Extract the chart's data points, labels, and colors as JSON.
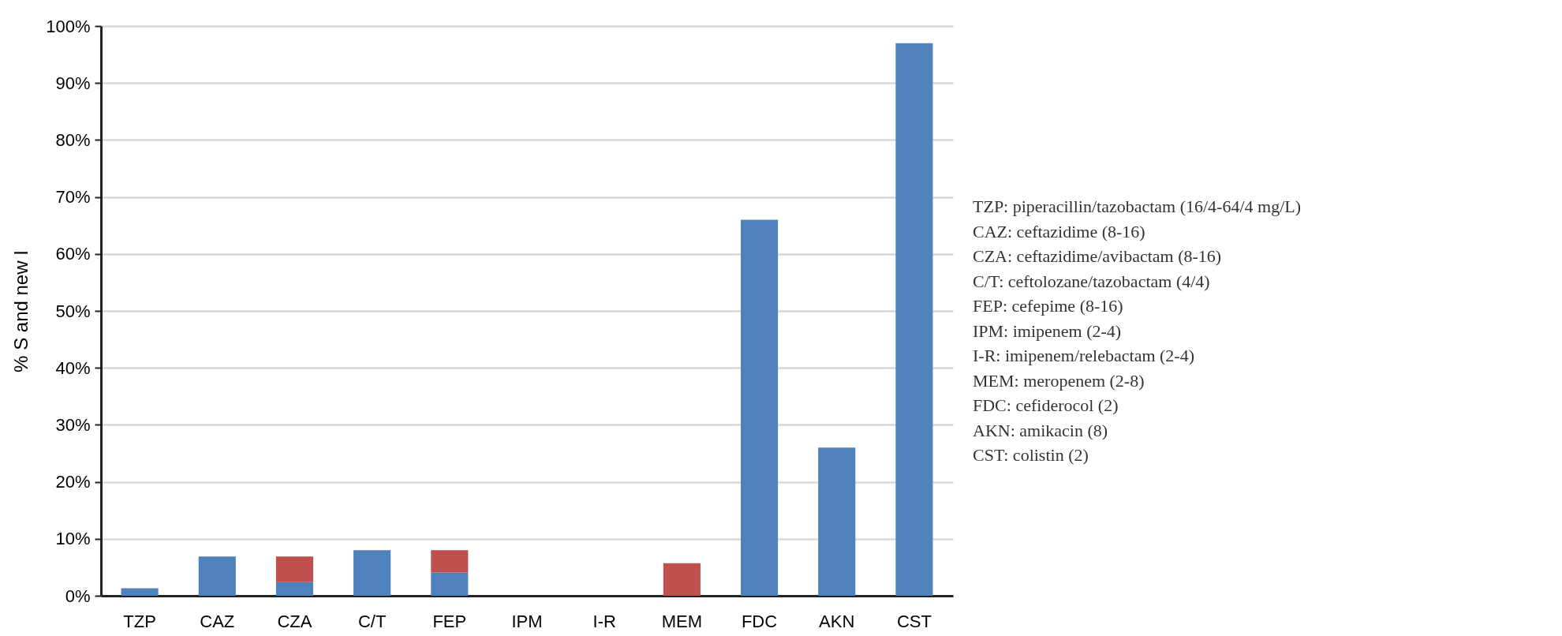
{
  "chart_data": {
    "type": "bar",
    "ylabel": "% S and new I",
    "categories": [
      "TZP",
      "CAZ",
      "CZA",
      "C/T",
      "FEP",
      "IPM",
      "I-R",
      "MEM",
      "FDC",
      "AKN",
      "CST"
    ],
    "series": [
      {
        "color": "#4f81bd",
        "values": [
          1.3,
          6.9,
          2.4,
          8.0,
          4.1,
          0,
          0,
          0,
          66,
          26,
          97
        ]
      },
      {
        "color": "#c0504d",
        "values": [
          0,
          0,
          4.5,
          0,
          3.9,
          0,
          0,
          5.7,
          0,
          0,
          0
        ]
      }
    ],
    "stacked": true,
    "ylim": [
      0,
      100
    ],
    "yticks": [
      {
        "value": 0,
        "label": "0%"
      },
      {
        "value": 10,
        "label": "10%"
      },
      {
        "value": 20,
        "label": "20%"
      },
      {
        "value": 30,
        "label": "30%"
      },
      {
        "value": 40,
        "label": "40%"
      },
      {
        "value": 50,
        "label": "50%"
      },
      {
        "value": 60,
        "label": "60%"
      },
      {
        "value": 70,
        "label": "70%"
      },
      {
        "value": 80,
        "label": "80%"
      },
      {
        "value": 90,
        "label": "90%"
      },
      {
        "value": 100,
        "label": "100%"
      }
    ],
    "grid": "y",
    "legend": false,
    "annotations": [
      "TZP: piperacillin/tazobactam (16/4-64/4 mg/L)",
      "CAZ: ceftazidime (8-16)",
      "CZA: ceftazidime/avibactam (8-16)",
      "C/T: ceftolozane/tazobactam (4/4)",
      "FEP: cefepime (8-16)",
      "IPM: imipenem (2-4)",
      "I-R: imipenem/relebactam (2-4)",
      "MEM: meropenem (2-8)",
      "FDC: cefiderocol (2)",
      "AKN: amikacin (8)",
      "CST: colistin (2)"
    ]
  }
}
